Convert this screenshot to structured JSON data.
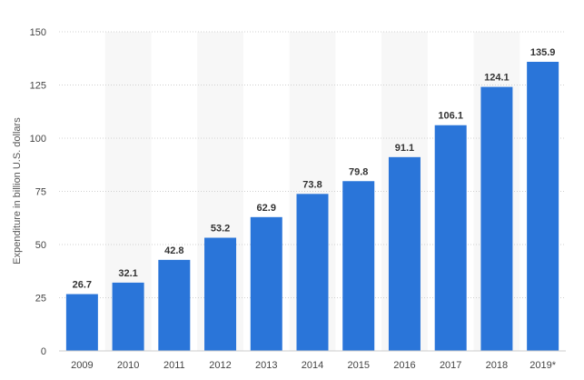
{
  "chart_data": {
    "type": "bar",
    "title": "",
    "xlabel": "",
    "ylabel": "Expenditure in billion U.S. dollars",
    "ylim": [
      0,
      150
    ],
    "yticks": [
      "0",
      "25",
      "50",
      "75",
      "100",
      "125",
      "150"
    ],
    "grid": true,
    "categories": [
      "2009",
      "2010",
      "2011",
      "2012",
      "2013",
      "2014",
      "2015",
      "2016",
      "2017",
      "2018",
      "2019*"
    ],
    "values": [
      26.7,
      32.1,
      42.8,
      53.2,
      62.9,
      73.8,
      79.8,
      91.1,
      106.1,
      124.1,
      135.9
    ],
    "value_labels": [
      "26.7",
      "32.1",
      "42.8",
      "53.2",
      "62.9",
      "73.8",
      "79.8",
      "91.1",
      "106.1",
      "124.1",
      "135.9"
    ],
    "bar_color": "#2a75d9"
  }
}
